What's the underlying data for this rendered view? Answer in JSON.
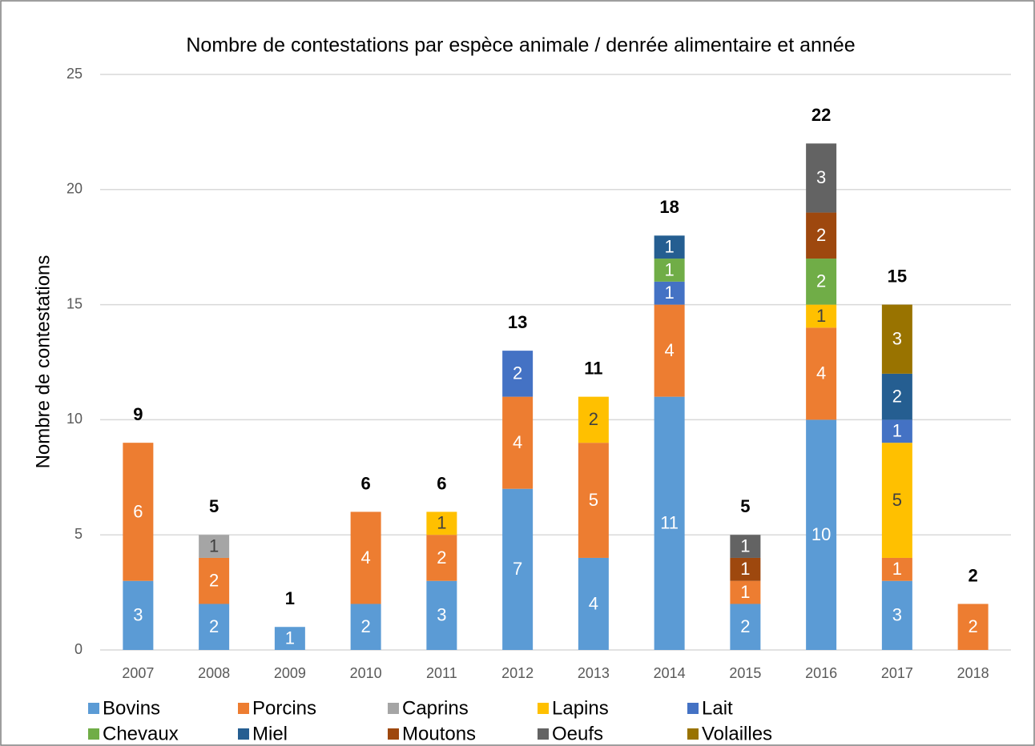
{
  "chart_data": {
    "type": "stacked_bar",
    "title": "Nombre de contestations par espèce animale  / denrée alimentaire et année",
    "y_label": "Nombre de contestations",
    "categories": [
      "2007",
      "2008",
      "2009",
      "2010",
      "2011",
      "2012",
      "2013",
      "2014",
      "2015",
      "2016",
      "2017",
      "2018"
    ],
    "series": [
      {
        "name": "Bovins",
        "color": "#5b9bd5",
        "values": [
          3,
          2,
          1,
          2,
          3,
          7,
          4,
          11,
          2,
          10,
          3,
          null
        ]
      },
      {
        "name": "Porcins",
        "color": "#ed7d31",
        "values": [
          6,
          2,
          null,
          4,
          2,
          4,
          5,
          4,
          1,
          4,
          1,
          2
        ]
      },
      {
        "name": "Caprins",
        "color": "#a5a5a5",
        "values": [
          null,
          1,
          null,
          null,
          null,
          null,
          null,
          null,
          null,
          null,
          null,
          null
        ]
      },
      {
        "name": "Lapins",
        "color": "#ffc000",
        "values": [
          null,
          null,
          null,
          null,
          1,
          null,
          2,
          null,
          null,
          1,
          5,
          null
        ]
      },
      {
        "name": "Lait",
        "color": "#4472c4",
        "values": [
          null,
          null,
          null,
          null,
          null,
          2,
          null,
          1,
          null,
          null,
          1,
          null
        ]
      },
      {
        "name": "Chevaux",
        "color": "#70ad47",
        "values": [
          null,
          null,
          null,
          null,
          null,
          null,
          null,
          1,
          null,
          2,
          null,
          null
        ]
      },
      {
        "name": "Miel",
        "color": "#255e91",
        "values": [
          null,
          null,
          null,
          null,
          null,
          null,
          null,
          1,
          null,
          null,
          2,
          null
        ]
      },
      {
        "name": "Moutons",
        "color": "#9e480e",
        "values": [
          null,
          null,
          null,
          null,
          null,
          null,
          null,
          null,
          1,
          2,
          null,
          null
        ]
      },
      {
        "name": "Oeufs",
        "color": "#636363",
        "values": [
          null,
          null,
          null,
          null,
          null,
          null,
          null,
          null,
          1,
          3,
          null,
          null
        ]
      },
      {
        "name": "Volailles",
        "color": "#997300",
        "values": [
          null,
          null,
          null,
          null,
          null,
          null,
          null,
          null,
          null,
          null,
          3,
          null
        ]
      }
    ],
    "totals": [
      9,
      5,
      1,
      6,
      6,
      13,
      11,
      18,
      5,
      22,
      15,
      2
    ],
    "ylim": [
      0,
      25
    ],
    "yticks": [
      0,
      5,
      10,
      15,
      20,
      25
    ],
    "grid": true,
    "legend": "bottom"
  }
}
